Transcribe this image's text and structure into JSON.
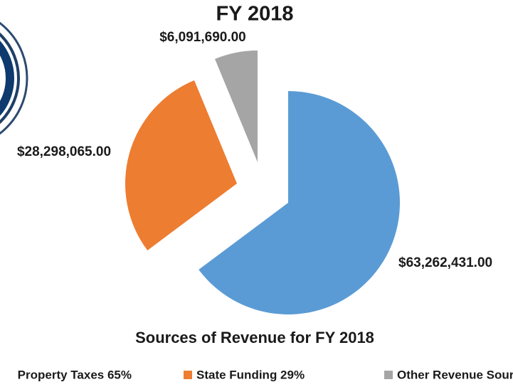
{
  "chart_data": {
    "type": "pie",
    "title": "FY 2018",
    "subtitle": "Sources of Revenue for FY 2018",
    "categories": [
      "Property Taxes 65%",
      "State Funding 29%",
      "Other Revenue Sources"
    ],
    "values": [
      63262431,
      28298065,
      6091690
    ],
    "value_labels": [
      "$63,262,431.00",
      "$28,298,065.00",
      "$6,091,690.00"
    ],
    "colors": [
      "#5b9bd5",
      "#ed7d31",
      "#a5a5a5"
    ],
    "legend": "bottom"
  }
}
